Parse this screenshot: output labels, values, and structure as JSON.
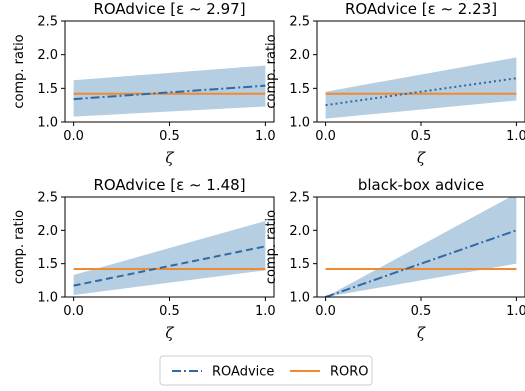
{
  "colors": {
    "roadvice": "#2f6aa3",
    "roro": "#f08a32",
    "band": "#a9c5dd"
  },
  "legend": {
    "roadvice_label": "ROAdvice",
    "roro_label": "RORO",
    "placement": "bottom-center"
  },
  "chart_data": [
    {
      "type": "line",
      "title": "ROAdvice [ε ∼ 2.97]",
      "xlabel": "ζ",
      "ylabel": "comp. ratio",
      "xlim": [
        0,
        1
      ],
      "ylim": [
        1.0,
        2.5
      ],
      "xticks": [
        "0.0",
        "0.5",
        "1.0"
      ],
      "yticks": [
        "1.0",
        "1.5",
        "2.0",
        "2.5"
      ],
      "dash": "dashdot",
      "series": [
        {
          "name": "ROAdvice",
          "x": [
            0,
            1
          ],
          "y": [
            1.34,
            1.54
          ],
          "band_low": [
            1.08,
            1.23
          ],
          "band_high": [
            1.62,
            1.84
          ]
        },
        {
          "name": "RORO",
          "x": [
            0,
            1
          ],
          "y": [
            1.42,
            1.42
          ]
        }
      ]
    },
    {
      "type": "line",
      "title": "ROAdvice [ε ∼ 2.23]",
      "xlabel": "ζ",
      "ylabel": "comp. ratio",
      "xlim": [
        0,
        1
      ],
      "ylim": [
        1.0,
        2.5
      ],
      "xticks": [
        "0.0",
        "0.5",
        "1.0"
      ],
      "yticks": [
        "1.0",
        "1.5",
        "2.0",
        "2.5"
      ],
      "dash": "dotted",
      "series": [
        {
          "name": "ROAdvice",
          "x": [
            0,
            1
          ],
          "y": [
            1.25,
            1.65
          ],
          "band_low": [
            1.05,
            1.32
          ],
          "band_high": [
            1.45,
            1.96
          ]
        },
        {
          "name": "RORO",
          "x": [
            0,
            1
          ],
          "y": [
            1.42,
            1.42
          ]
        }
      ]
    },
    {
      "type": "line",
      "title": "ROAdvice [ε ∼ 1.48]",
      "xlabel": "ζ",
      "ylabel": "comp. ratio",
      "xlim": [
        0,
        1
      ],
      "ylim": [
        1.0,
        2.5
      ],
      "xticks": [
        "0.0",
        "0.5",
        "1.0"
      ],
      "yticks": [
        "1.0",
        "1.5",
        "2.0",
        "2.5"
      ],
      "dash": "dashed",
      "series": [
        {
          "name": "ROAdvice",
          "x": [
            0,
            1
          ],
          "y": [
            1.17,
            1.76
          ],
          "band_low": [
            1.03,
            1.4
          ],
          "band_high": [
            1.33,
            2.14
          ]
        },
        {
          "name": "RORO",
          "x": [
            0,
            1
          ],
          "y": [
            1.42,
            1.42
          ]
        }
      ]
    },
    {
      "type": "line",
      "title": "black-box advice",
      "xlabel": "ζ",
      "ylabel": "comp. ratio",
      "xlim": [
        0,
        1
      ],
      "ylim": [
        1.0,
        2.5
      ],
      "xticks": [
        "0.0",
        "0.5",
        "1.0"
      ],
      "yticks": [
        "1.0",
        "1.5",
        "2.0",
        "2.5"
      ],
      "dash": "dashdot",
      "series": [
        {
          "name": "ROAdvice",
          "x": [
            0,
            1
          ],
          "y": [
            1.0,
            2.0
          ],
          "band_low": [
            1.0,
            1.5
          ],
          "band_high": [
            1.0,
            2.55
          ]
        },
        {
          "name": "RORO",
          "x": [
            0,
            1
          ],
          "y": [
            1.42,
            1.42
          ]
        }
      ]
    }
  ]
}
